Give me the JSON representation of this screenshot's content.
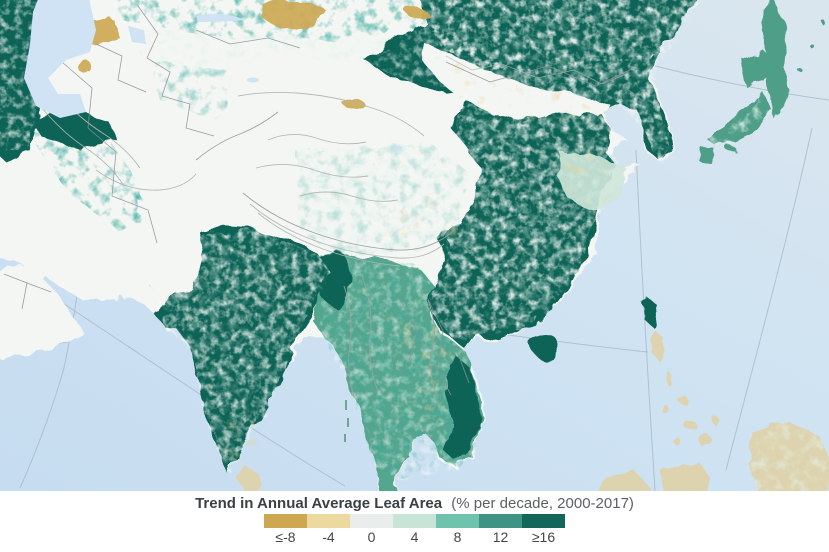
{
  "legend": {
    "title_bold": "Trend in Annual Average Leaf Area",
    "title_units": "(% per decade, 2000-2017)",
    "stops": [
      {
        "label": "≤-8",
        "color": "#cda850"
      },
      {
        "label": "-4",
        "color": "#ecd9a0"
      },
      {
        "label": "0",
        "color": "#e9edeb"
      },
      {
        "label": "4",
        "color": "#c6e5d7"
      },
      {
        "label": "8",
        "color": "#6fc3ac"
      },
      {
        "label": "12",
        "color": "#3e9385"
      },
      {
        "label": "≥16",
        "color": "#14655a"
      }
    ]
  },
  "map": {
    "palette": {
      "ocean": "#cfe3f2",
      "land_neutral": "#f4f6f3",
      "greening_strong": "#0d6456",
      "greening_moderate": "#55a68e",
      "greening_light": "#c6e5d7",
      "browning": "#cda850",
      "graticule": "#a7b6c4",
      "border": "#8d9499",
      "relief": "#b2b6b3"
    }
  }
}
